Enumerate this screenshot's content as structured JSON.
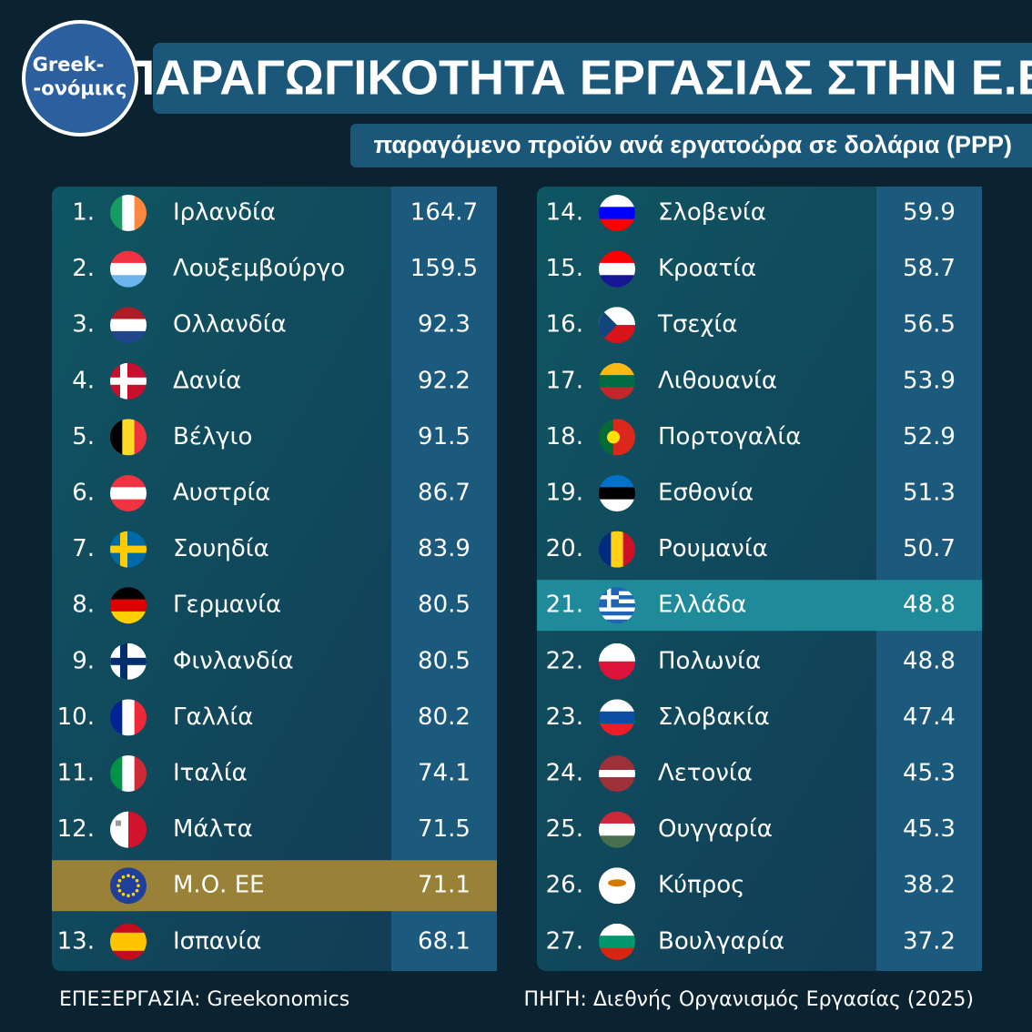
{
  "header": {
    "title": "ΠΑΡΑΓΩΓΙΚΟΤΗΤΑ ΕΡΓΑΣΙΑΣ ΣΤΗΝ Ε.Ε.",
    "subtitle": "παραγόμενο προϊόν ανά εργατοώρα σε δολάρια (PPP)"
  },
  "logo": [
    "Greek-",
    "-ονόμικς"
  ],
  "left_table": {
    "rows": [
      {
        "rank": "1.",
        "country": "Ιρλανδία",
        "value": 164.7
      },
      {
        "rank": "2.",
        "country": "Λουξεμβούργο",
        "value": 159.5
      },
      {
        "rank": "3.",
        "country": "Ολλανδία",
        "value": 92.3
      },
      {
        "rank": "4.",
        "country": "Δανία",
        "value": 92.2
      },
      {
        "rank": "5.",
        "country": "Βέλγιο",
        "value": 91.5
      },
      {
        "rank": "6.",
        "country": "Αυστρία",
        "value": 86.7
      },
      {
        "rank": "7.",
        "country": "Σουηδία",
        "value": 83.9
      },
      {
        "rank": "8.",
        "country": "Γερμανία",
        "value": 80.5
      },
      {
        "rank": "9.",
        "country": "Φινλανδία",
        "value": 80.5
      },
      {
        "rank": "10.",
        "country": "Γαλλία",
        "value": 80.2
      },
      {
        "rank": "11.",
        "country": "Ιταλία",
        "value": 74.1
      },
      {
        "rank": "12.",
        "country": "Μάλτα",
        "value": 71.5
      },
      {
        "country": "Μ.Ο. ΕΕ",
        "value": 71.1,
        "highlight": "#9a8138"
      },
      {
        "rank": "13.",
        "country": "Ισπανία",
        "value": 68.1
      }
    ]
  },
  "right_table": {
    "rows": [
      {
        "rank": "14.",
        "country": "Σλοβενία",
        "value": 59.9
      },
      {
        "rank": "15.",
        "country": "Κροατία",
        "value": 58.7
      },
      {
        "rank": "16.",
        "country": "Τσεχία",
        "value": 56.5
      },
      {
        "rank": "17.",
        "country": "Λιθουανία",
        "value": 53.9
      },
      {
        "rank": "18.",
        "country": "Πορτογαλία",
        "value": 52.9
      },
      {
        "rank": "19.",
        "country": "Εσθονία",
        "value": 51.3
      },
      {
        "rank": "20.",
        "country": "Ρουμανία",
        "value": 50.7
      },
      {
        "rank": "21.",
        "country": "Ελλάδα",
        "value": 48.8,
        "highlight": "#1f8a99"
      },
      {
        "rank": "22.",
        "country": "Πολωνία",
        "value": 48.8
      },
      {
        "rank": "23.",
        "country": "Σλοβακία",
        "value": 47.4
      },
      {
        "rank": "24.",
        "country": "Λετονία",
        "value": 45.3
      },
      {
        "rank": "25.",
        "country": "Ουγγαρία",
        "value": 45.3
      },
      {
        "rank": "26.",
        "country": "Κύπρος",
        "value": 38.2
      },
      {
        "rank": "27.",
        "country": "Βουλγαρία",
        "value": 37.2
      }
    ]
  },
  "footer": {
    "credit": "ΕΠΕΞΕΡΓΑΣΙΑ: Greekonomics",
    "source": "ΠΗΓΗ: Διεθνής Οργανισμός Εργασίας (2025)"
  }
}
